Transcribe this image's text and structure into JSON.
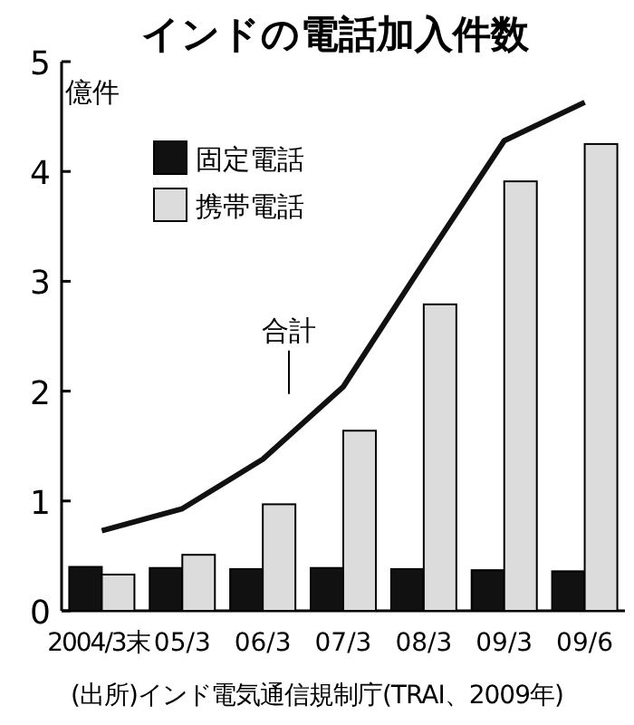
{
  "chart_data": {
    "type": "bar",
    "title": "インドの電話加入件数",
    "ylabel": "億件",
    "categories": [
      "2004/3末",
      "05/3",
      "06/3",
      "07/3",
      "08/3",
      "09/3",
      "09/6"
    ],
    "series": [
      {
        "name": "固定電話",
        "color": "#111111",
        "values": [
          0.4,
          0.39,
          0.38,
          0.39,
          0.38,
          0.37,
          0.36
        ]
      },
      {
        "name": "携帯電話",
        "color": "#dcdcdc",
        "values": [
          0.33,
          0.51,
          0.97,
          1.64,
          2.79,
          3.91,
          4.25
        ]
      },
      {
        "name": "合計",
        "type": "line",
        "color": "#111111",
        "values": [
          0.73,
          0.93,
          1.38,
          2.04,
          3.17,
          4.28,
          4.63
        ]
      }
    ],
    "ylim": [
      0,
      5
    ],
    "yticks": [
      0,
      1,
      2,
      3,
      4,
      5
    ],
    "legend": "top left",
    "annotations": [
      "(出所)インド電気通信規制庁(TRAI、2009年)"
    ]
  }
}
